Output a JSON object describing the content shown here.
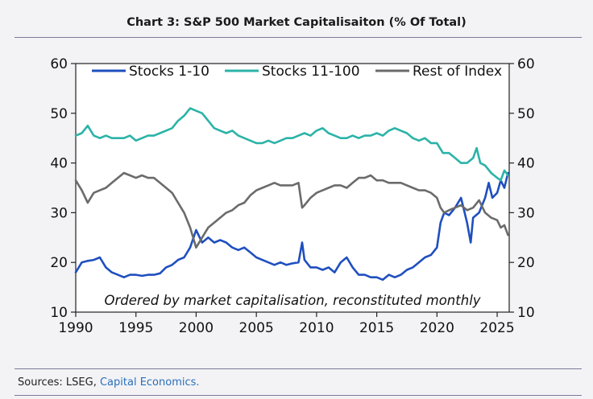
{
  "chart_data": {
    "type": "line",
    "title": "Chart 3: S&P 500 Market Capitalisaiton (% Of Total)",
    "annotation": "Ordered by market capitalisation, reconstituted monthly",
    "xlabel": "",
    "ylabel": "",
    "xlim": [
      1990,
      2026
    ],
    "ylim": [
      10,
      60
    ],
    "x_ticks": [
      1990,
      1995,
      2000,
      2005,
      2010,
      2015,
      2020,
      2025
    ],
    "y_ticks": [
      10,
      20,
      30,
      40,
      50,
      60
    ],
    "legend": "top",
    "series": [
      {
        "name": "Stocks 1-10",
        "color": "#1f4fbf",
        "x": [
          1990,
          1990.5,
          1991,
          1991.5,
          1992,
          1992.5,
          1993,
          1993.5,
          1994,
          1994.5,
          1995,
          1995.5,
          1996,
          1996.5,
          1997,
          1997.5,
          1998,
          1998.5,
          1999,
          1999.5,
          2000,
          2000.5,
          2001,
          2001.5,
          2002,
          2002.5,
          2003,
          2003.5,
          2004,
          2004.5,
          2005,
          2005.5,
          2006,
          2006.5,
          2007,
          2007.5,
          2008,
          2008.5,
          2008.8,
          2009,
          2009.5,
          2010,
          2010.5,
          2011,
          2011.5,
          2012,
          2012.5,
          2013,
          2013.5,
          2014,
          2014.5,
          2015,
          2015.5,
          2016,
          2016.5,
          2017,
          2017.5,
          2018,
          2018.5,
          2019,
          2019.5,
          2020,
          2020.3,
          2020.6,
          2021,
          2021.5,
          2022,
          2022.5,
          2022.8,
          2023,
          2023.5,
          2024,
          2024.3,
          2024.6,
          2025,
          2025.3,
          2025.6,
          2025.9
        ],
        "values": [
          18,
          20,
          20.3,
          20.5,
          21,
          19,
          18,
          17.5,
          17,
          17.5,
          17.5,
          17.3,
          17.5,
          17.5,
          17.8,
          19,
          19.5,
          20.5,
          21,
          23,
          26.5,
          24,
          25,
          24,
          24.5,
          24,
          23,
          22.5,
          23,
          22,
          21,
          20.5,
          20,
          19.5,
          20,
          19.5,
          19.8,
          20,
          24,
          20.5,
          19,
          19,
          18.5,
          19,
          18,
          20,
          21,
          19,
          17.5,
          17.5,
          17,
          17,
          16.5,
          17.5,
          17,
          17.5,
          18.5,
          19,
          20,
          21,
          21.5,
          23,
          28,
          30,
          29.5,
          31,
          33,
          28,
          24,
          29,
          30,
          33,
          36,
          33,
          34,
          36.5,
          35,
          38
        ]
      },
      {
        "name": "Stocks 11-100",
        "color": "#2bb3a8",
        "x": [
          1990,
          1990.5,
          1991,
          1991.5,
          1992,
          1992.5,
          1993,
          1993.5,
          1994,
          1994.5,
          1995,
          1995.5,
          1996,
          1996.5,
          1997,
          1997.5,
          1998,
          1998.5,
          1999,
          1999.5,
          2000,
          2000.5,
          2001,
          2001.5,
          2002,
          2002.5,
          2003,
          2003.5,
          2004,
          2004.5,
          2005,
          2005.5,
          2006,
          2006.5,
          2007,
          2007.5,
          2008,
          2008.5,
          2009,
          2009.5,
          2010,
          2010.5,
          2011,
          2011.5,
          2012,
          2012.5,
          2013,
          2013.5,
          2014,
          2014.5,
          2015,
          2015.5,
          2016,
          2016.5,
          2017,
          2017.5,
          2018,
          2018.5,
          2019,
          2019.5,
          2020,
          2020.5,
          2021,
          2021.5,
          2022,
          2022.5,
          2023,
          2023.3,
          2023.6,
          2024,
          2024.5,
          2025,
          2025.3,
          2025.6,
          2025.9
        ],
        "values": [
          45.5,
          46,
          47.5,
          45.5,
          45,
          45.5,
          45,
          45,
          45,
          45.5,
          44.5,
          45,
          45.5,
          45.5,
          46,
          46.5,
          47,
          48.5,
          49.5,
          51,
          50.5,
          50,
          48.5,
          47,
          46.5,
          46,
          46.5,
          45.5,
          45,
          44.5,
          44,
          44,
          44.5,
          44,
          44.5,
          45,
          45,
          45.5,
          46,
          45.5,
          46.5,
          47,
          46,
          45.5,
          45,
          45,
          45.5,
          45,
          45.5,
          45.5,
          46,
          45.5,
          46.5,
          47,
          46.5,
          46,
          45,
          44.5,
          45,
          44,
          44,
          42,
          42,
          41,
          40,
          40,
          41,
          43,
          40,
          39.5,
          38,
          37,
          36.5,
          38.5,
          37.5
        ]
      },
      {
        "name": "Rest of Index",
        "color": "#6b6b6b",
        "x": [
          1990,
          1990.5,
          1991,
          1991.5,
          1992,
          1992.5,
          1993,
          1993.5,
          1994,
          1994.5,
          1995,
          1995.5,
          1996,
          1996.5,
          1997,
          1997.5,
          1998,
          1998.5,
          1999,
          1999.5,
          2000,
          2000.5,
          2001,
          2001.5,
          2002,
          2002.5,
          2003,
          2003.5,
          2004,
          2004.5,
          2005,
          2005.5,
          2006,
          2006.5,
          2007,
          2007.5,
          2008,
          2008.5,
          2008.8,
          2009,
          2009.5,
          2010,
          2010.5,
          2011,
          2011.5,
          2012,
          2012.5,
          2013,
          2013.5,
          2014,
          2014.5,
          2015,
          2015.5,
          2016,
          2016.5,
          2017,
          2017.5,
          2018,
          2018.5,
          2019,
          2019.5,
          2020,
          2020.3,
          2020.6,
          2021,
          2021.5,
          2022,
          2022.5,
          2023,
          2023.5,
          2024,
          2024.5,
          2025,
          2025.3,
          2025.6,
          2025.9
        ],
        "values": [
          36.5,
          34.5,
          32,
          34,
          34.5,
          35,
          36,
          37,
          38,
          37.5,
          37,
          37.5,
          37,
          37,
          36,
          35,
          34,
          32,
          30,
          27,
          23,
          25,
          27,
          28,
          29,
          30,
          30.5,
          31.5,
          32,
          33.5,
          34.5,
          35,
          35.5,
          36,
          35.5,
          35.5,
          35.5,
          36,
          31,
          31.5,
          33,
          34,
          34.5,
          35,
          35.5,
          35.5,
          35,
          36,
          37,
          37,
          37.5,
          36.5,
          36.5,
          36,
          36,
          36,
          35.5,
          35,
          34.5,
          34.5,
          34,
          33,
          31,
          30,
          30.5,
          31,
          31.5,
          30.5,
          31,
          32.5,
          30,
          29,
          28.5,
          27,
          27.5,
          25.5
        ]
      }
    ]
  },
  "source": {
    "prefix": "Sources: LSEG, ",
    "highlight": "Capital Economics."
  }
}
